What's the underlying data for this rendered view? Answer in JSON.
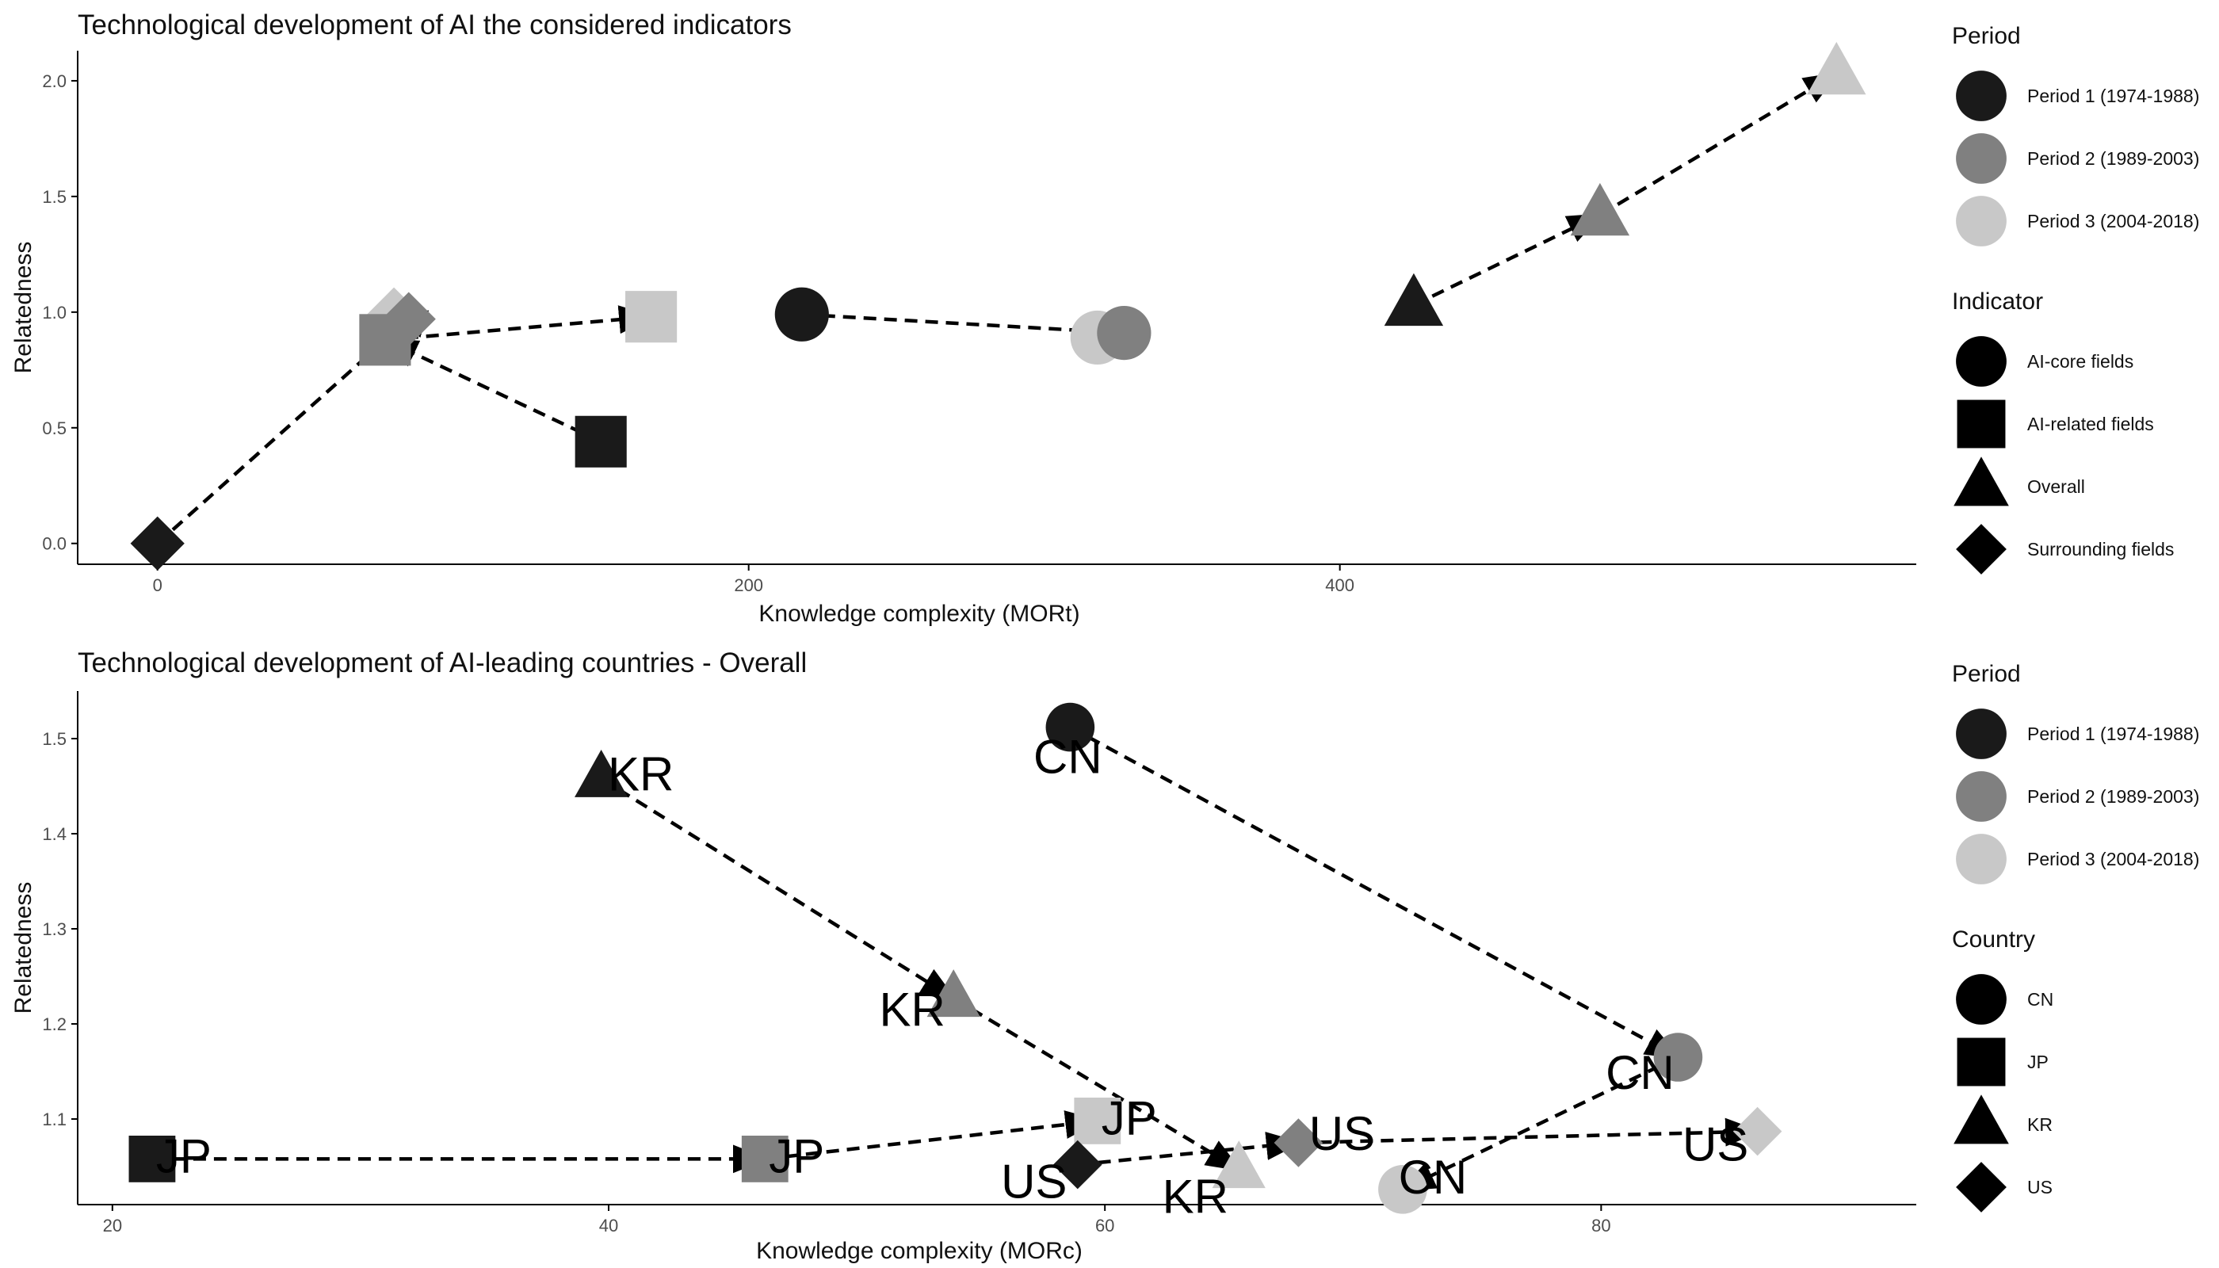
{
  "colors": {
    "period1": "#1a1a1a",
    "period2": "#808080",
    "period3": "#c8c8c8",
    "legend_shape": "#000000",
    "arrow": "#000000",
    "axis": "#000000"
  },
  "chart_data": [
    {
      "type": "scatter",
      "title": "Technological development of AI the considered indicators",
      "xlabel": "Knowledge complexity (MORt)",
      "ylabel": "Relatedness",
      "xlim": [
        -27,
        595
      ],
      "ylim": [
        -0.09,
        2.13
      ],
      "xticks": [
        "0",
        "200",
        "400"
      ],
      "xtick_values": [
        0,
        200,
        400
      ],
      "yticks": [
        "0.0",
        "0.5",
        "1.0",
        "1.5",
        "2.0"
      ],
      "ytick_values": [
        0,
        0.5,
        1.0,
        1.5,
        2.0
      ],
      "legends": [
        {
          "title": "Period",
          "entries": [
            {
              "label": "Period 1 (1974-1988)",
              "color_key": "period1"
            },
            {
              "label": "Period 2 (1989-2003)",
              "color_key": "period2"
            },
            {
              "label": "Period 3 (2004-2018)",
              "color_key": "period3"
            }
          ]
        },
        {
          "title": "Indicator",
          "entries": [
            {
              "label": "AI-core fields",
              "shape": "circle"
            },
            {
              "label": "AI-related fields",
              "shape": "square"
            },
            {
              "label": "Overall",
              "shape": "triangle"
            },
            {
              "label": "Surrounding fields",
              "shape": "diamond"
            }
          ]
        }
      ],
      "series": [
        {
          "indicator": "AI-core fields",
          "shape": "circle",
          "points": [
            {
              "period": 1,
              "x": 218,
              "y": 0.99
            },
            {
              "period": 2,
              "x": 327,
              "y": 0.91
            },
            {
              "period": 3,
              "x": 318,
              "y": 0.89
            }
          ]
        },
        {
          "indicator": "AI-related fields",
          "shape": "square",
          "points": [
            {
              "period": 1,
              "x": 150,
              "y": 0.44
            },
            {
              "period": 2,
              "x": 77,
              "y": 0.88
            },
            {
              "period": 3,
              "x": 167,
              "y": 0.98
            }
          ]
        },
        {
          "indicator": "Overall",
          "shape": "triangle",
          "points": [
            {
              "period": 1,
              "x": 425,
              "y": 1.03
            },
            {
              "period": 2,
              "x": 488,
              "y": 1.42
            },
            {
              "period": 3,
              "x": 568,
              "y": 2.03
            }
          ]
        },
        {
          "indicator": "Surrounding fields",
          "shape": "diamond",
          "points": [
            {
              "period": 1,
              "x": 0,
              "y": 0.0
            },
            {
              "period": 2,
              "x": 85,
              "y": 0.97
            },
            {
              "period": 3,
              "x": 80,
              "y": 0.99
            }
          ]
        }
      ]
    },
    {
      "type": "scatter",
      "title": "Technological development of AI-leading countries - Overall",
      "xlabel": "Knowledge complexity (MORc)",
      "ylabel": "Relatedness",
      "xlim": [
        18.6,
        92.7
      ],
      "ylim": [
        1.01,
        1.55
      ],
      "xticks": [
        "20",
        "40",
        "60",
        "80"
      ],
      "xtick_values": [
        20,
        40,
        60,
        80
      ],
      "yticks": [
        "1.1",
        "1.2",
        "1.3",
        "1.4",
        "1.5"
      ],
      "ytick_values": [
        1.1,
        1.2,
        1.3,
        1.4,
        1.5
      ],
      "legends": [
        {
          "title": "Period",
          "entries": [
            {
              "label": "Period 1 (1974-1988)",
              "color_key": "period1"
            },
            {
              "label": "Period 2 (1989-2003)",
              "color_key": "period2"
            },
            {
              "label": "Period 3 (2004-2018)",
              "color_key": "period3"
            }
          ]
        },
        {
          "title": "Country",
          "entries": [
            {
              "label": "CN",
              "shape": "circle"
            },
            {
              "label": "JP",
              "shape": "square"
            },
            {
              "label": "KR",
              "shape": "triangle"
            },
            {
              "label": "US",
              "shape": "diamond"
            }
          ]
        }
      ],
      "series": [
        {
          "country": "CN",
          "shape": "circle",
          "points": [
            {
              "period": 1,
              "x": 58.6,
              "y": 1.512,
              "label": "CN",
              "lx": -3,
              "ly": 38
            },
            {
              "period": 2,
              "x": 83.1,
              "y": 1.165,
              "label": "CN",
              "lx": -48,
              "ly": 20
            },
            {
              "period": 3,
              "x": 72.0,
              "y": 1.026,
              "label": "CN",
              "lx": 38,
              "ly": -15
            }
          ]
        },
        {
          "country": "JP",
          "shape": "square",
          "points": [
            {
              "period": 1,
              "x": 21.6,
              "y": 1.058,
              "label": "JP",
              "lx": 40,
              "ly": -3
            },
            {
              "period": 2,
              "x": 46.3,
              "y": 1.058,
              "label": "JP",
              "lx": 40,
              "ly": -3
            },
            {
              "period": 3,
              "x": 59.7,
              "y": 1.098,
              "label": "JP",
              "lx": 40,
              "ly": -3
            }
          ]
        },
        {
          "country": "KR",
          "shape": "triangle",
          "points": [
            {
              "period": 1,
              "x": 39.7,
              "y": 1.458,
              "label": "KR",
              "lx": 50,
              "ly": -5
            },
            {
              "period": 2,
              "x": 53.9,
              "y": 1.227,
              "label": "KR",
              "lx": -52,
              "ly": 15
            },
            {
              "period": 3,
              "x": 65.4,
              "y": 1.047,
              "label": "KR",
              "lx": -55,
              "ly": 35
            }
          ]
        },
        {
          "country": "US",
          "shape": "diamond",
          "points": [
            {
              "period": 1,
              "x": 58.9,
              "y": 1.052,
              "label": "US",
              "lx": -55,
              "ly": 22
            },
            {
              "period": 2,
              "x": 67.8,
              "y": 1.075,
              "label": "US",
              "lx": 55,
              "ly": -11
            },
            {
              "period": 3,
              "x": 86.3,
              "y": 1.087,
              "label": "US",
              "lx": -53,
              "ly": 17
            }
          ]
        }
      ]
    }
  ]
}
